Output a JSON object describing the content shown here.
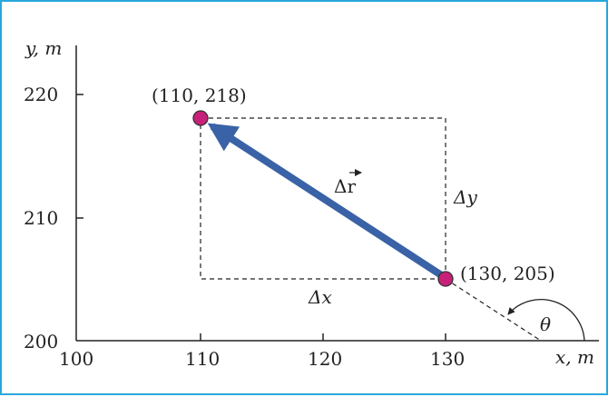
{
  "axes": {
    "x_label": "x, m",
    "y_label": "y, m",
    "x_ticks": [
      "100",
      "110",
      "120",
      "130"
    ],
    "y_ticks": [
      "200",
      "210",
      "220"
    ]
  },
  "points": {
    "start": {
      "x": 130,
      "y": 205,
      "label": "(130, 205)"
    },
    "end": {
      "x": 110,
      "y": 218,
      "label": "(110, 218)"
    }
  },
  "labels": {
    "displacement": "Δr",
    "delta_x": "Δx",
    "delta_y": "Δy",
    "angle": "θ"
  },
  "colors": {
    "frame": "#2aa7dc",
    "arrow": "#3a62a6",
    "point": "#c8207a"
  }
}
